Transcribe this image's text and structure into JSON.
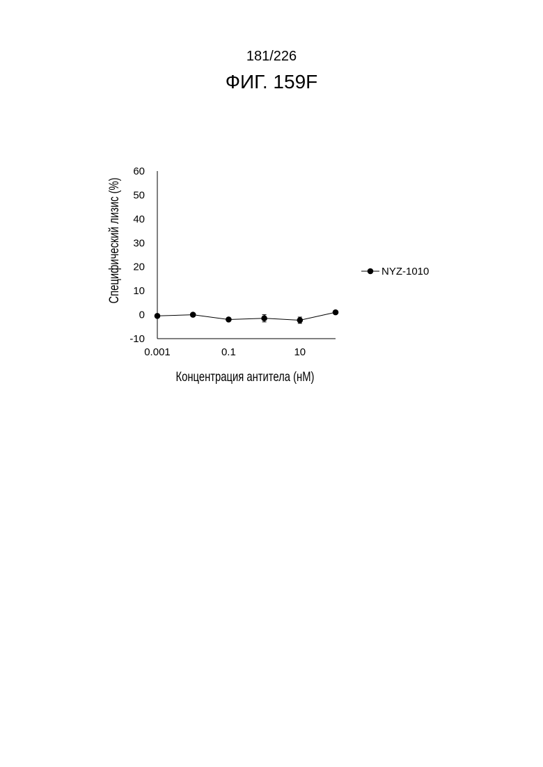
{
  "page": {
    "page_number": "181/226",
    "figure_label": "ФИГ. 159F"
  },
  "chart_data": {
    "type": "line",
    "xlabel": "Концентрация антитела (нМ)",
    "ylabel": "Специфический лизис (%)",
    "x_scale": "log",
    "xlim": [
      0.001,
      100
    ],
    "ylim": [
      -10,
      60
    ],
    "x_ticks": [
      "0.001",
      "0.1",
      "10"
    ],
    "y_ticks": [
      "60",
      "50",
      "40",
      "30",
      "20",
      "10",
      "0",
      "-10"
    ],
    "grid": false,
    "legend_position": "right",
    "series": [
      {
        "name": "NYZ-1010",
        "color": "#000000",
        "marker": "circle",
        "x": [
          0.001,
          0.01,
          0.1,
          1,
          10,
          100
        ],
        "y": [
          -0.5,
          0,
          -2,
          -1.5,
          -2.3,
          1
        ],
        "error": [
          0,
          0,
          0,
          1.5,
          1.3,
          0.7
        ]
      }
    ]
  }
}
